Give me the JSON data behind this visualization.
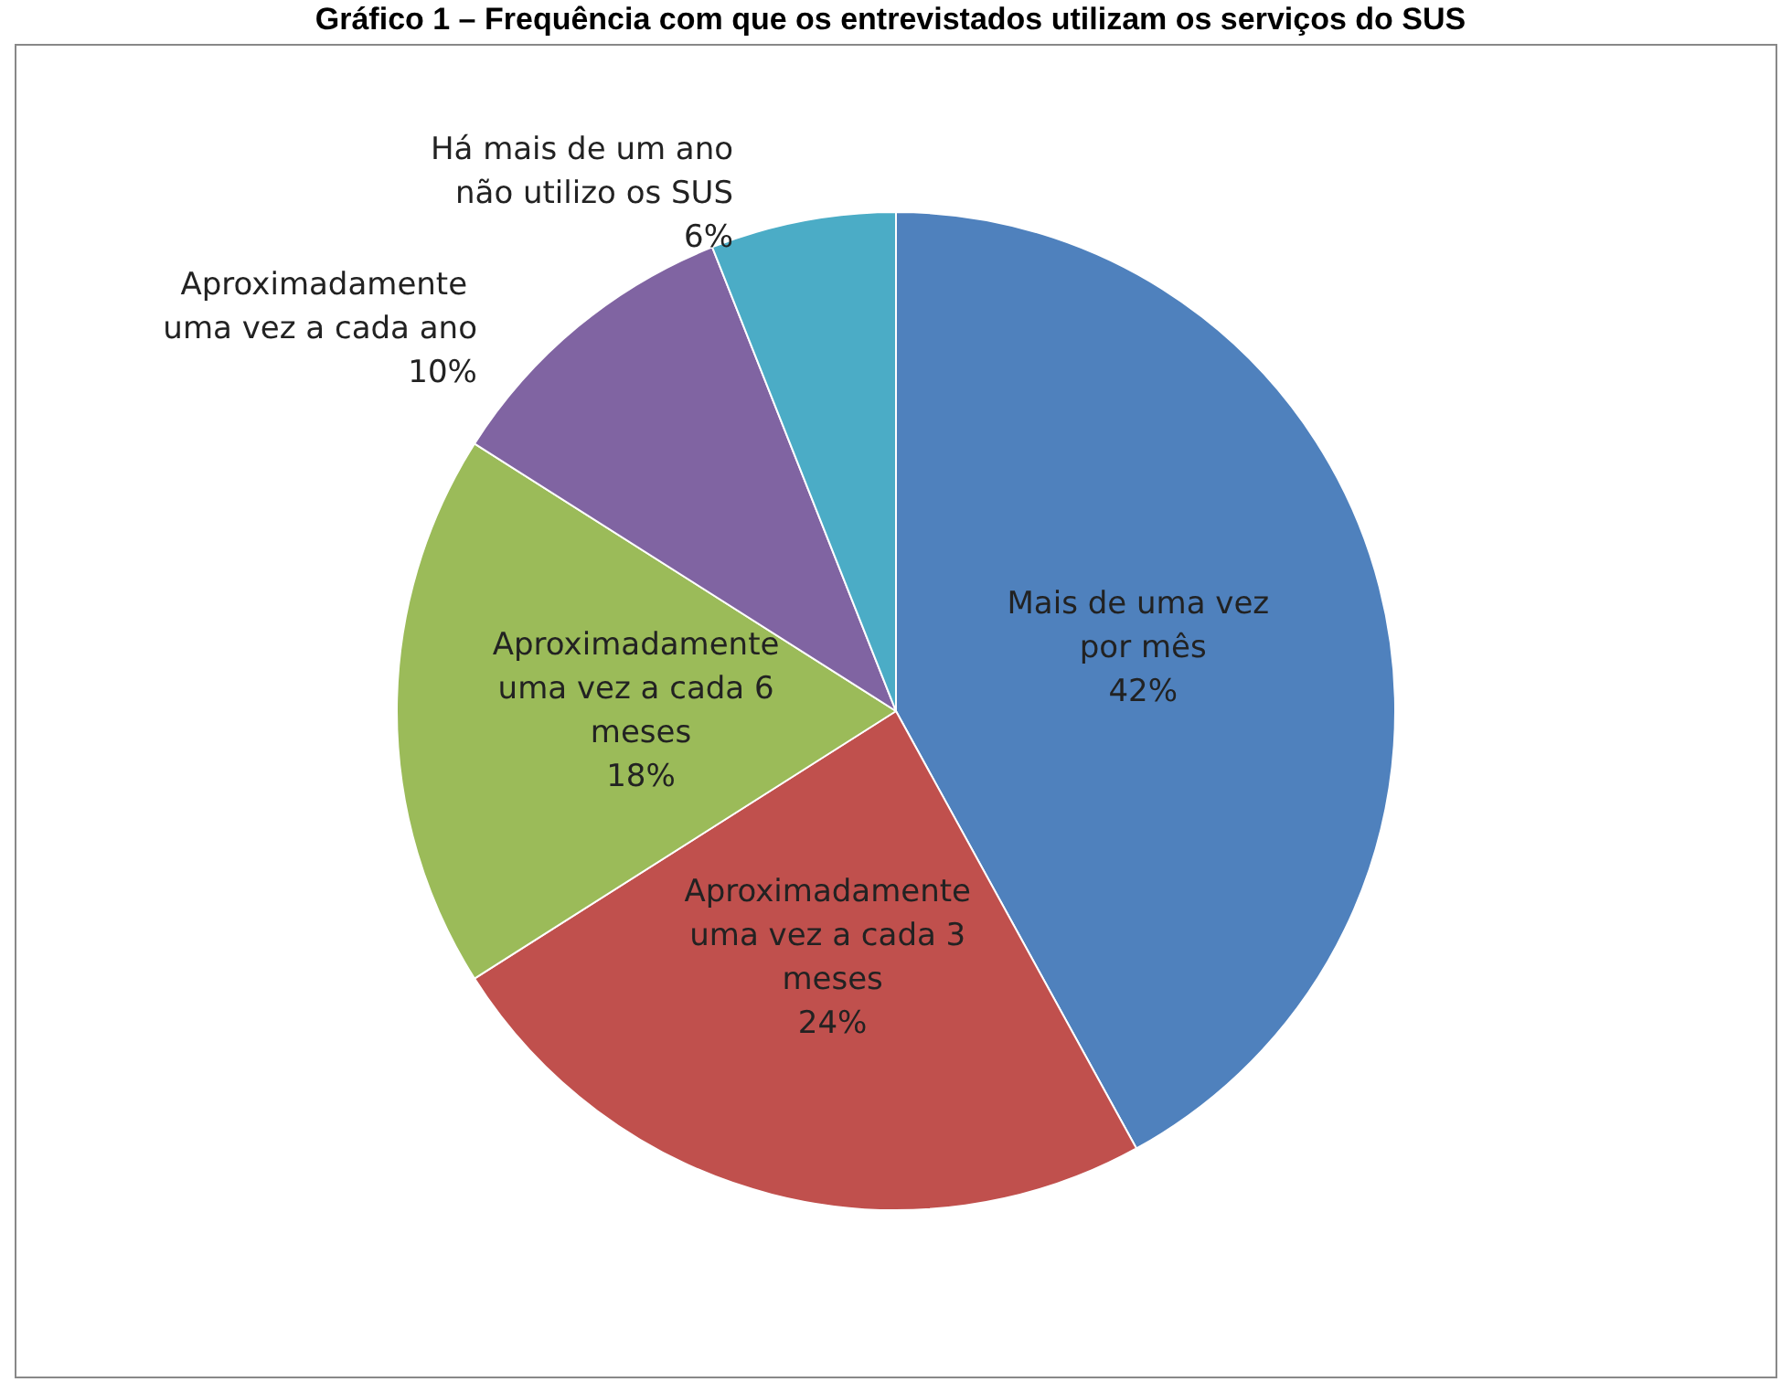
{
  "chart_data": {
    "type": "pie",
    "title": "Gráfico 1 – Frequência com que os entrevistados utilizam os serviços do SUS",
    "categories": [
      "Mais de uma vez por mês",
      "Aproximadamente uma vez a cada 3 meses",
      "Aproximadamente uma vez a cada 6 meses",
      "Aproximadamente uma vez a cada ano",
      "Há mais de um ano não utilizo os SUS"
    ],
    "values": [
      42,
      24,
      18,
      10,
      6
    ],
    "colors": [
      "#4f81bd",
      "#c0504d",
      "#9bbb59",
      "#8064a2",
      "#4bacc6"
    ],
    "value_labels": [
      "42%",
      "24%",
      "18%",
      "10%",
      "6%"
    ],
    "legend": false
  }
}
